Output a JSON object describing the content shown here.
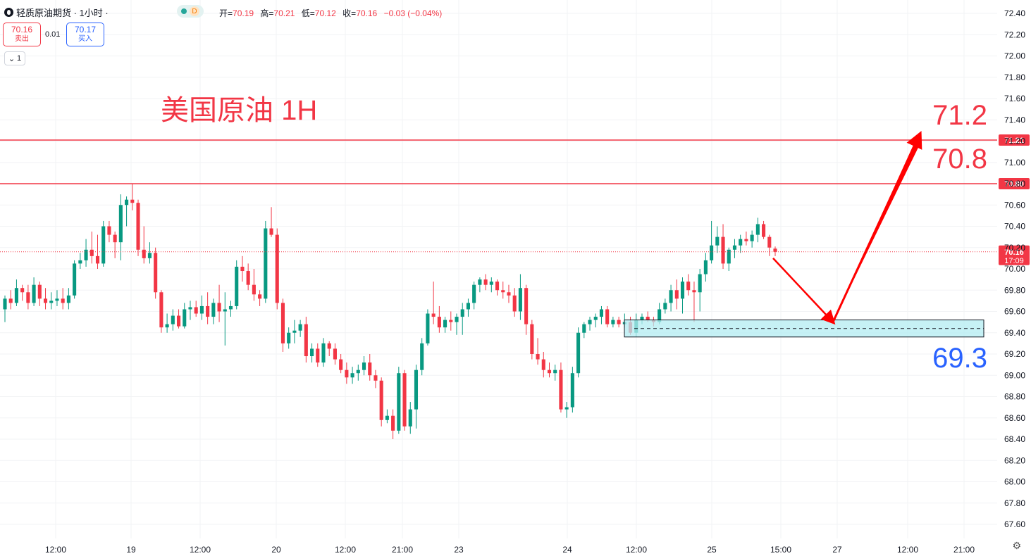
{
  "header": {
    "symbol": "轻质原油期货 · 1小时 ·",
    "mode_badge": "D",
    "open_label": "开=",
    "open": "70.19",
    "high_label": "高=",
    "high": "70.21",
    "low_label": "低=",
    "low": "70.12",
    "close_label": "收=",
    "close": "70.16",
    "change": "−0.03 (−0.04%)"
  },
  "trade": {
    "sell_price": "70.16",
    "sell_label": "卖出",
    "spread": "0.01",
    "buy_price": "70.17",
    "buy_label": "买入",
    "collapse_count": "1"
  },
  "annotations": {
    "title": "美国原油 1H",
    "target_high": "71.2",
    "target_mid": "70.8",
    "target_low": "69.3"
  },
  "colors": {
    "up": "#089981",
    "down": "#f23645",
    "blue": "#2962ff",
    "zone_fill": "#b3ecf2"
  },
  "chart_data": {
    "type": "candlestick",
    "y_range": [
      67.6,
      72.4
    ],
    "y_ticks": [
      "72.40",
      "72.20",
      "72.00",
      "71.80",
      "71.60",
      "71.40",
      "71.20",
      "71.00",
      "70.80",
      "70.60",
      "70.40",
      "70.20",
      "70.00",
      "69.80",
      "69.60",
      "69.40",
      "69.20",
      "69.00",
      "68.80",
      "68.60",
      "68.40",
      "68.20",
      "68.00",
      "67.80",
      "67.60"
    ],
    "x_ticks": [
      "12:00",
      "19",
      "12:00",
      "20",
      "12:00",
      "21:00",
      "23",
      "24",
      "12:00",
      "25",
      "15:00",
      "27",
      "12:00",
      "21:00"
    ],
    "horizontal_lines": [
      {
        "price": 71.21,
        "label": "71.21"
      },
      {
        "price": 70.8,
        "label": "70.80"
      }
    ],
    "current_price": {
      "price": 70.16,
      "label": "70.16",
      "countdown": "17:09"
    },
    "support_zone": {
      "from": 69.36,
      "to": 69.52,
      "mid": 69.44
    },
    "projection": [
      [
        0,
        70.1
      ],
      [
        1,
        69.5
      ],
      [
        2,
        71.22
      ]
    ],
    "candles": [
      [
        69.62,
        69.75,
        69.5,
        69.72
      ],
      [
        69.72,
        69.8,
        69.62,
        69.68
      ],
      [
        69.68,
        69.9,
        69.65,
        69.82
      ],
      [
        69.82,
        69.85,
        69.7,
        69.78
      ],
      [
        69.78,
        69.85,
        69.62,
        69.68
      ],
      [
        69.68,
        69.92,
        69.65,
        69.85
      ],
      [
        69.85,
        69.88,
        69.65,
        69.72
      ],
      [
        69.72,
        69.82,
        69.62,
        69.68
      ],
      [
        69.68,
        69.78,
        69.62,
        69.7
      ],
      [
        69.7,
        69.8,
        69.65,
        69.72
      ],
      [
        69.72,
        69.82,
        69.62,
        69.68
      ],
      [
        69.68,
        69.82,
        69.62,
        69.75
      ],
      [
        69.75,
        70.08,
        69.72,
        70.05
      ],
      [
        70.05,
        70.15,
        70.0,
        70.08
      ],
      [
        70.08,
        70.28,
        70.02,
        70.18
      ],
      [
        70.18,
        70.35,
        70.05,
        70.12
      ],
      [
        70.12,
        70.32,
        70.0,
        70.05
      ],
      [
        70.05,
        70.45,
        70.02,
        70.4
      ],
      [
        70.4,
        70.45,
        70.25,
        70.32
      ],
      [
        70.32,
        70.35,
        70.1,
        70.25
      ],
      [
        70.25,
        70.7,
        70.08,
        70.6
      ],
      [
        70.6,
        70.68,
        70.4,
        70.65
      ],
      [
        70.65,
        70.8,
        70.55,
        70.62
      ],
      [
        70.62,
        70.65,
        70.12,
        70.18
      ],
      [
        70.18,
        70.4,
        70.05,
        70.1
      ],
      [
        70.1,
        70.25,
        70.05,
        70.15
      ],
      [
        70.15,
        70.2,
        69.72,
        69.78
      ],
      [
        69.78,
        69.8,
        69.4,
        69.45
      ],
      [
        69.45,
        69.58,
        69.4,
        69.48
      ],
      [
        69.48,
        69.62,
        69.42,
        69.56
      ],
      [
        69.56,
        69.62,
        69.44,
        69.46
      ],
      [
        69.46,
        69.68,
        69.44,
        69.62
      ],
      [
        69.62,
        69.7,
        69.52,
        69.64
      ],
      [
        69.64,
        69.7,
        69.55,
        69.58
      ],
      [
        69.58,
        69.75,
        69.52,
        69.65
      ],
      [
        69.65,
        69.78,
        69.48,
        69.55
      ],
      [
        69.55,
        69.72,
        69.48,
        69.68
      ],
      [
        69.68,
        69.85,
        69.5,
        69.6
      ],
      [
        69.6,
        69.78,
        69.28,
        69.62
      ],
      [
        69.62,
        69.7,
        69.55,
        69.65
      ],
      [
        69.65,
        70.08,
        69.62,
        70.02
      ],
      [
        70.02,
        70.12,
        69.88,
        69.98
      ],
      [
        69.98,
        70.05,
        69.8,
        69.85
      ],
      [
        69.85,
        70.0,
        69.7,
        69.76
      ],
      [
        69.76,
        69.8,
        69.65,
        69.72
      ],
      [
        69.72,
        70.45,
        69.68,
        70.38
      ],
      [
        70.38,
        70.58,
        70.3,
        70.32
      ],
      [
        70.32,
        70.38,
        69.62,
        69.68
      ],
      [
        69.68,
        69.72,
        69.22,
        69.3
      ],
      [
        69.3,
        69.45,
        69.25,
        69.4
      ],
      [
        69.4,
        69.52,
        69.3,
        69.42
      ],
      [
        69.42,
        69.52,
        69.36,
        69.48
      ],
      [
        69.48,
        69.55,
        69.12,
        69.18
      ],
      [
        69.18,
        69.3,
        69.12,
        69.25
      ],
      [
        69.25,
        69.3,
        69.08,
        69.12
      ],
      [
        69.12,
        69.35,
        69.08,
        69.3
      ],
      [
        69.3,
        69.32,
        69.18,
        69.25
      ],
      [
        69.25,
        69.3,
        69.1,
        69.15
      ],
      [
        69.15,
        69.2,
        69.02,
        69.05
      ],
      [
        69.05,
        69.12,
        68.92,
        68.98
      ],
      [
        68.98,
        69.08,
        68.92,
        69.02
      ],
      [
        69.02,
        69.1,
        68.95,
        69.05
      ],
      [
        69.05,
        69.18,
        69.0,
        69.12
      ],
      [
        69.12,
        69.2,
        68.95,
        69.0
      ],
      [
        69.0,
        69.05,
        68.88,
        68.95
      ],
      [
        68.95,
        68.98,
        68.52,
        68.58
      ],
      [
        68.58,
        68.68,
        68.55,
        68.62
      ],
      [
        68.62,
        68.68,
        68.4,
        68.48
      ],
      [
        68.48,
        69.08,
        68.45,
        69.02
      ],
      [
        69.02,
        69.05,
        68.48,
        68.52
      ],
      [
        68.52,
        68.75,
        68.45,
        68.68
      ],
      [
        68.68,
        69.1,
        68.5,
        69.05
      ],
      [
        69.05,
        69.35,
        69.0,
        69.3
      ],
      [
        69.3,
        69.62,
        69.28,
        69.58
      ],
      [
        69.58,
        69.88,
        69.48,
        69.55
      ],
      [
        69.55,
        69.65,
        69.4,
        69.45
      ],
      [
        69.45,
        69.55,
        69.4,
        69.52
      ],
      [
        69.52,
        69.6,
        69.42,
        69.5
      ],
      [
        69.5,
        69.58,
        69.38,
        69.55
      ],
      [
        69.55,
        69.68,
        69.38,
        69.62
      ],
      [
        69.62,
        69.72,
        69.55,
        69.68
      ],
      [
        69.68,
        69.88,
        69.62,
        69.85
      ],
      [
        69.85,
        69.92,
        69.78,
        69.9
      ],
      [
        69.9,
        69.95,
        69.8,
        69.85
      ],
      [
        69.85,
        69.92,
        69.78,
        69.88
      ],
      [
        69.88,
        69.9,
        69.75,
        69.8
      ],
      [
        69.8,
        69.88,
        69.72,
        69.78
      ],
      [
        69.78,
        69.85,
        69.68,
        69.75
      ],
      [
        69.75,
        69.82,
        69.55,
        69.6
      ],
      [
        69.6,
        69.95,
        69.52,
        69.82
      ],
      [
        69.82,
        69.85,
        69.38,
        69.48
      ],
      [
        69.48,
        69.52,
        69.15,
        69.2
      ],
      [
        69.2,
        69.35,
        69.1,
        69.15
      ],
      [
        69.15,
        69.22,
        68.98,
        69.05
      ],
      [
        69.05,
        69.12,
        68.98,
        69.02
      ],
      [
        69.02,
        69.1,
        68.95,
        69.05
      ],
      [
        69.05,
        69.12,
        68.65,
        68.68
      ],
      [
        68.68,
        68.75,
        68.6,
        68.7
      ],
      [
        68.7,
        69.08,
        68.65,
        69.02
      ],
      [
        69.02,
        69.45,
        68.98,
        69.4
      ],
      [
        69.4,
        69.5,
        69.35,
        69.48
      ],
      [
        69.48,
        69.55,
        69.42,
        69.52
      ],
      [
        69.52,
        69.58,
        69.45,
        69.55
      ],
      [
        69.55,
        69.65,
        69.48,
        69.62
      ],
      [
        69.62,
        69.65,
        69.45,
        69.48
      ],
      [
        69.48,
        69.55,
        69.45,
        69.52
      ],
      [
        69.52,
        69.55,
        69.45,
        69.48
      ],
      [
        69.48,
        69.58,
        69.45,
        69.5
      ],
      [
        69.5,
        69.55,
        69.38,
        69.4
      ],
      [
        69.4,
        69.58,
        69.36,
        69.52
      ],
      [
        69.52,
        69.58,
        69.48,
        69.55
      ],
      [
        69.55,
        69.6,
        69.5,
        69.52
      ],
      [
        69.52,
        69.55,
        69.46,
        69.5
      ],
      [
        69.5,
        69.68,
        69.48,
        69.62
      ],
      [
        69.62,
        69.72,
        69.58,
        69.68
      ],
      [
        69.68,
        69.85,
        69.6,
        69.8
      ],
      [
        69.8,
        69.9,
        69.62,
        69.72
      ],
      [
        69.72,
        69.92,
        69.58,
        69.88
      ],
      [
        69.88,
        69.95,
        69.75,
        69.8
      ],
      [
        69.8,
        69.88,
        69.5,
        69.78
      ],
      [
        69.78,
        70.0,
        69.6,
        69.95
      ],
      [
        69.95,
        70.15,
        69.88,
        70.08
      ],
      [
        70.08,
        70.45,
        70.05,
        70.22
      ],
      [
        70.22,
        70.4,
        70.15,
        70.3
      ],
      [
        70.3,
        70.42,
        70.0,
        70.05
      ],
      [
        70.05,
        70.2,
        69.98,
        70.18
      ],
      [
        70.18,
        70.28,
        70.1,
        70.22
      ],
      [
        70.22,
        70.32,
        70.15,
        70.28
      ],
      [
        70.28,
        70.35,
        70.22,
        70.26
      ],
      [
        70.26,
        70.36,
        70.2,
        70.32
      ],
      [
        70.32,
        70.48,
        70.25,
        70.42
      ],
      [
        70.42,
        70.45,
        70.28,
        70.3
      ],
      [
        70.3,
        70.32,
        70.12,
        70.2
      ],
      [
        70.19,
        70.21,
        70.12,
        70.16
      ]
    ]
  }
}
